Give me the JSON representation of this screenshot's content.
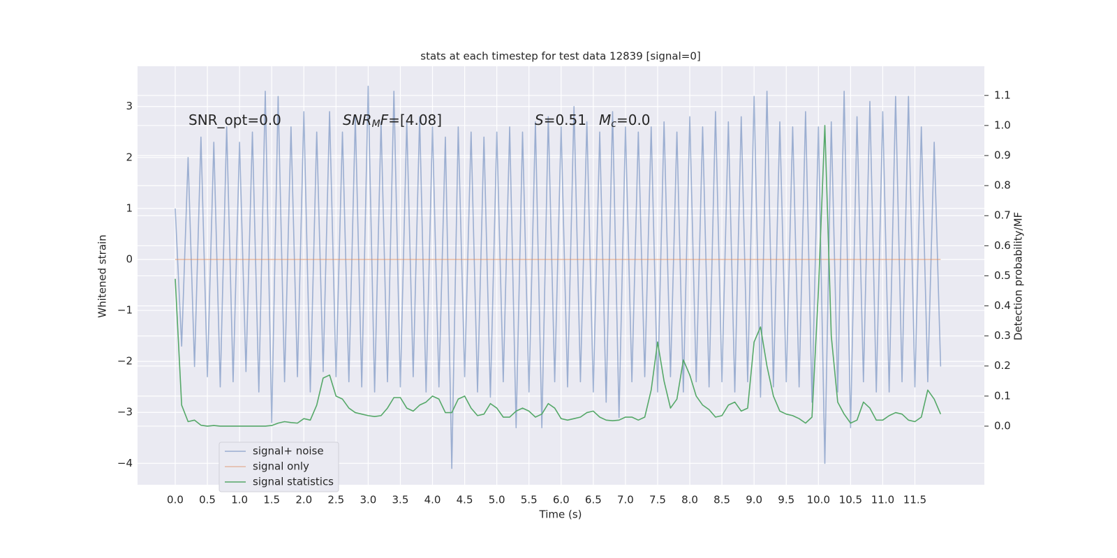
{
  "chart_data": {
    "type": "line",
    "title": "stats at each timestep for test data 12839 [signal=0]",
    "xlabel": "Time (s)",
    "ylabel": "Whitened strain",
    "y2label": "Detection probability/MF",
    "annotations": [
      [
        {
          "text": "SNR_opt=0.0",
          "style": "normal"
        }
      ],
      [
        {
          "text": "SNR",
          "style": "italic"
        },
        {
          "text": "M",
          "style": "sub"
        },
        {
          "text": "F",
          "style": "italic"
        },
        {
          "text": "=[4.08]",
          "style": "normal"
        }
      ],
      [
        {
          "text": "S",
          "style": "italic"
        },
        {
          "text": "=0.51",
          "style": "normal"
        }
      ],
      [
        {
          "text": "M",
          "style": "italic"
        },
        {
          "text": "c",
          "style": "sub"
        },
        {
          "text": "=0.0",
          "style": "normal"
        }
      ]
    ],
    "x": [
      0.0,
      0.1,
      0.2,
      0.3,
      0.4,
      0.5,
      0.6,
      0.7,
      0.8,
      0.9,
      1.0,
      1.1,
      1.2,
      1.3,
      1.4,
      1.5,
      1.6,
      1.7,
      1.8,
      1.9,
      2.0,
      2.1,
      2.2,
      2.3,
      2.4,
      2.5,
      2.6,
      2.7,
      2.8,
      2.9,
      3.0,
      3.1,
      3.2,
      3.3,
      3.4,
      3.5,
      3.6,
      3.7,
      3.8,
      3.9,
      4.0,
      4.1,
      4.2,
      4.3,
      4.4,
      4.5,
      4.6,
      4.7,
      4.8,
      4.9,
      5.0,
      5.1,
      5.2,
      5.3,
      5.4,
      5.5,
      5.6,
      5.7,
      5.8,
      5.9,
      6.0,
      6.1,
      6.2,
      6.3,
      6.4,
      6.5,
      6.6,
      6.7,
      6.8,
      6.9,
      7.0,
      7.1,
      7.2,
      7.3,
      7.4,
      7.5,
      7.6,
      7.7,
      7.8,
      7.9,
      8.0,
      8.1,
      8.2,
      8.3,
      8.4,
      8.5,
      8.6,
      8.7,
      8.8,
      8.9,
      9.0,
      9.1,
      9.2,
      9.3,
      9.4,
      9.5,
      9.6,
      9.7,
      9.8,
      9.9,
      10.0,
      10.1,
      10.2,
      10.3,
      10.4,
      10.5,
      10.6,
      10.7,
      10.8,
      10.9,
      11.0,
      11.1,
      11.2,
      11.3,
      11.4,
      11.5,
      11.6,
      11.7,
      11.8,
      11.9
    ],
    "series": [
      {
        "name": "signal+ noise",
        "color": "#4c72b0",
        "opacity": 0.5,
        "values": [
          1.0,
          -1.7,
          2.0,
          -2.1,
          2.4,
          -2.3,
          2.3,
          -2.5,
          2.6,
          -2.4,
          2.3,
          -2.2,
          2.5,
          -2.6,
          3.3,
          -3.2,
          3.2,
          -2.4,
          2.6,
          -2.3,
          2.9,
          -2.6,
          2.5,
          -2.2,
          2.9,
          -2.3,
          2.5,
          -2.4,
          2.8,
          -2.5,
          3.4,
          -2.6,
          2.7,
          -2.4,
          3.3,
          -2.5,
          2.7,
          -2.3,
          2.8,
          -2.6,
          2.6,
          -2.5,
          2.4,
          -4.1,
          2.6,
          -2.3,
          2.5,
          -2.6,
          2.4,
          -2.7,
          2.5,
          -2.4,
          2.6,
          -3.3,
          2.5,
          -2.6,
          2.7,
          -3.3,
          2.8,
          -2.4,
          2.6,
          -2.5,
          3.0,
          -2.4,
          2.7,
          -2.6,
          2.5,
          -2.8,
          2.9,
          -3.1,
          2.6,
          -2.4,
          2.5,
          -2.3,
          2.6,
          -2.6,
          2.7,
          -2.3,
          2.5,
          -2.6,
          2.8,
          -2.4,
          2.6,
          -2.5,
          2.9,
          -2.4,
          2.7,
          -2.6,
          2.8,
          -2.4,
          3.2,
          -2.7,
          3.3,
          -2.5,
          2.7,
          -2.4,
          2.6,
          -2.5,
          2.9,
          -2.8,
          2.6,
          -4.0,
          2.7,
          -2.6,
          3.3,
          -3.3,
          2.8,
          -2.4,
          3.1,
          -2.6,
          2.9,
          -2.6,
          3.2,
          -2.4,
          3.2,
          -2.5,
          2.6,
          -2.4,
          2.3,
          -2.1
        ]
      },
      {
        "name": "signal only",
        "color": "#dd8452",
        "opacity": 0.5,
        "x": [
          0.0,
          11.9
        ],
        "values": [
          0,
          0
        ]
      },
      {
        "name": "signal statistics",
        "color": "#55a868",
        "opacity": 1,
        "axis": "y2",
        "values": [
          0.49,
          0.07,
          0.015,
          0.02,
          0.003,
          0.0,
          0.002,
          0.0,
          0.0,
          0.0,
          0.0,
          0.0,
          0.0,
          0.0,
          0.0,
          0.002,
          0.01,
          0.015,
          0.012,
          0.01,
          0.025,
          0.02,
          0.07,
          0.16,
          0.17,
          0.1,
          0.09,
          0.06,
          0.045,
          0.04,
          0.035,
          0.032,
          0.035,
          0.06,
          0.095,
          0.095,
          0.06,
          0.05,
          0.07,
          0.08,
          0.1,
          0.09,
          0.045,
          0.045,
          0.09,
          0.1,
          0.06,
          0.035,
          0.04,
          0.075,
          0.06,
          0.03,
          0.03,
          0.05,
          0.06,
          0.05,
          0.03,
          0.04,
          0.075,
          0.06,
          0.025,
          0.02,
          0.025,
          0.03,
          0.045,
          0.05,
          0.03,
          0.02,
          0.018,
          0.02,
          0.03,
          0.03,
          0.02,
          0.03,
          0.12,
          0.28,
          0.15,
          0.06,
          0.09,
          0.22,
          0.17,
          0.1,
          0.07,
          0.055,
          0.03,
          0.035,
          0.07,
          0.08,
          0.05,
          0.06,
          0.28,
          0.33,
          0.2,
          0.1,
          0.05,
          0.04,
          0.035,
          0.025,
          0.01,
          0.03,
          0.45,
          1.0,
          0.3,
          0.08,
          0.04,
          0.01,
          0.02,
          0.08,
          0.06,
          0.02,
          0.02,
          0.035,
          0.045,
          0.04,
          0.02,
          0.015,
          0.03,
          0.12,
          0.09,
          0.04
        ]
      }
    ],
    "xlim": [
      -0.586,
      12.58
    ],
    "xticks": [
      {
        "value": 0,
        "label": "0.0"
      },
      0.5,
      {
        "value": 1,
        "label": "1.0"
      },
      1.5,
      {
        "value": 2,
        "label": "2.0"
      },
      2.5,
      {
        "value": 3,
        "label": "3.0"
      },
      3.5,
      {
        "value": 4,
        "label": "4.0"
      },
      4.5,
      {
        "value": 5,
        "label": "5.0"
      },
      5.5,
      {
        "value": 6,
        "label": "6.0"
      },
      6.5,
      {
        "value": 7,
        "label": "7.0"
      },
      7.5,
      {
        "value": 8,
        "label": "8.0"
      },
      8.5,
      {
        "value": 9,
        "label": "9.0"
      },
      9.5,
      {
        "value": 10,
        "label": "10.0"
      },
      10.5,
      {
        "value": 11,
        "label": "11.0"
      },
      11.5
    ],
    "ylim": [
      -4.42,
      3.79
    ],
    "yticks": [
      {
        "value": -4,
        "label": "−4"
      },
      {
        "value": -3,
        "label": "−3"
      },
      {
        "value": -2,
        "label": "−2"
      },
      {
        "value": -1,
        "label": "−1"
      },
      0,
      1,
      2,
      3
    ],
    "y2lim": [
      -0.195,
      1.197
    ],
    "y2ticks": [
      {
        "value": 0,
        "label": "0.0"
      },
      0.1,
      0.2,
      0.3,
      0.4,
      0.5,
      0.6,
      0.7,
      0.8,
      0.9,
      {
        "value": 1,
        "label": "1.0"
      },
      1.1
    ],
    "grid": true,
    "legend": "lower left"
  }
}
